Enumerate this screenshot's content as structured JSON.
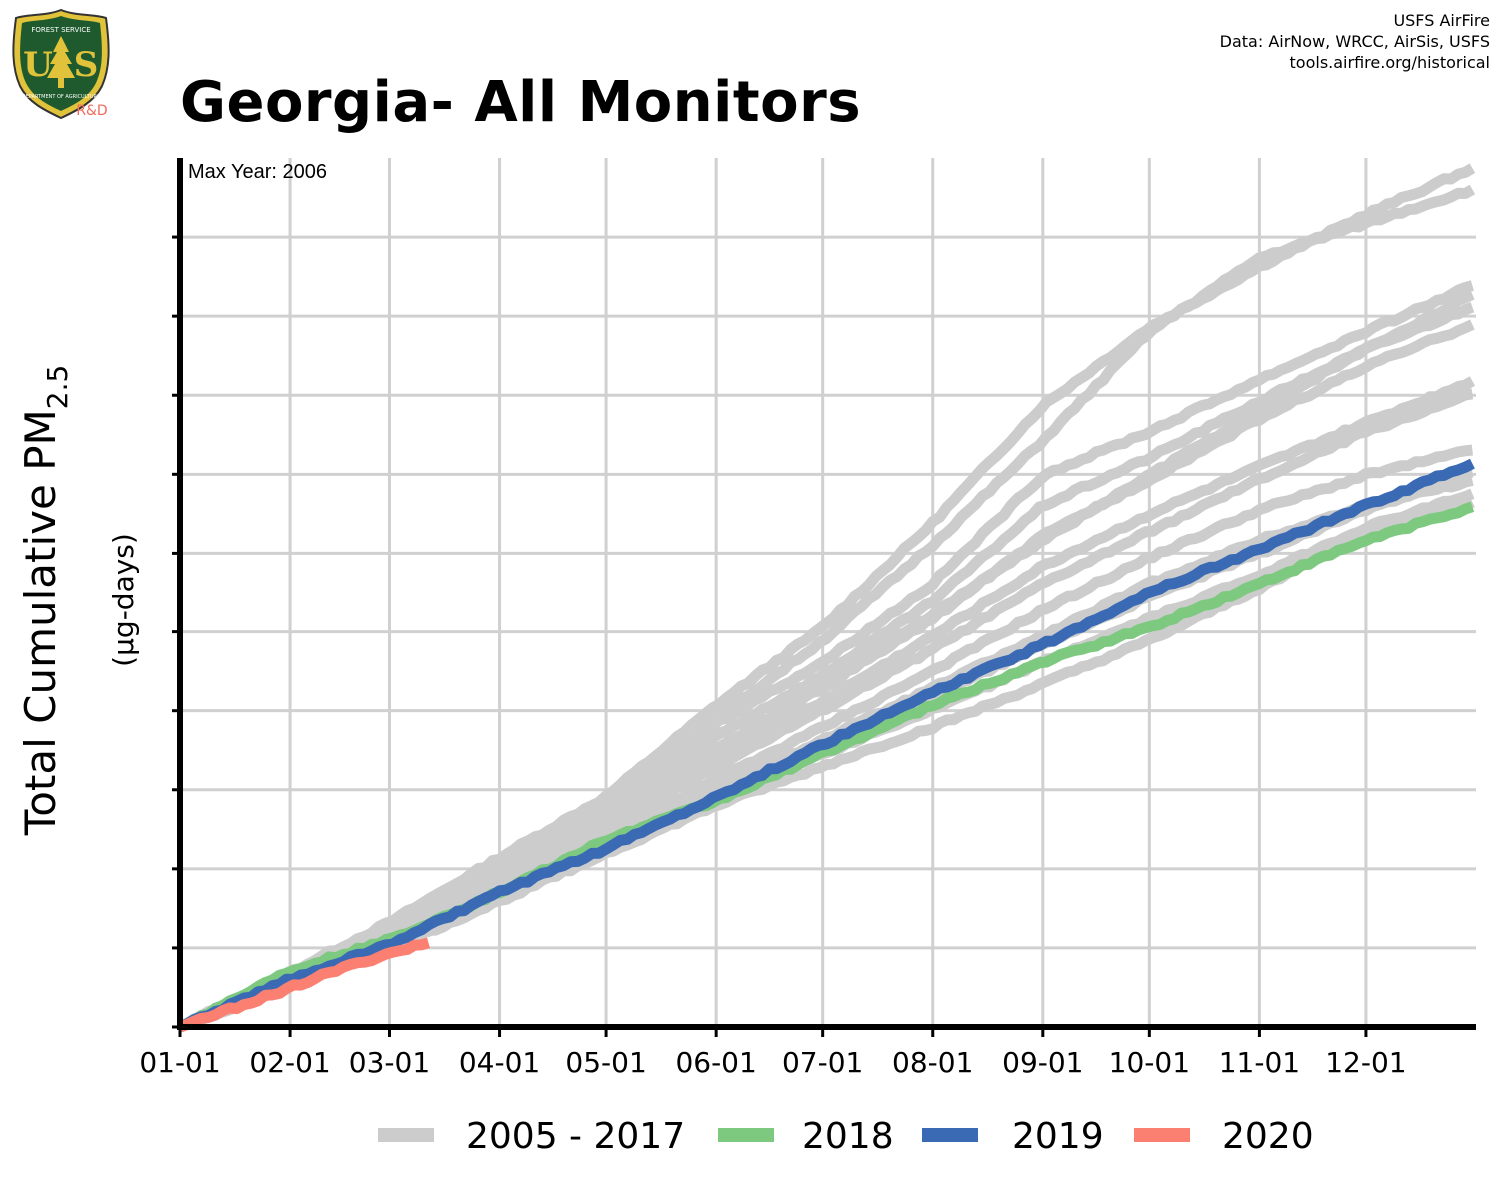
{
  "header": {
    "title": "Georgia- All Monitors",
    "credits": [
      "USFS AirFire",
      "Data: AirNow, WRCC, AirSis, USFS",
      "tools.airfire.org/historical"
    ]
  },
  "logo": {
    "text_top": "FOREST SERVICE",
    "text_us": "U",
    "text_s": "S",
    "text_bottom": "DEPARTMENT OF AGRICULTURE",
    "text_rd": "R&D",
    "colors": {
      "shield_green": "#1f5a2e",
      "shield_gold": "#e0c33a",
      "rd": "#f26b5b"
    }
  },
  "annotation": {
    "max_year": "Max Year: 2006"
  },
  "axes": {
    "ylabel_main": "Total Cumulative PM",
    "ylabel_sub": "2.5",
    "ylabel_units": "(µg-days)"
  },
  "legend": [
    {
      "label": "2005 - 2017",
      "color": "#cccccc"
    },
    {
      "label": "2018",
      "color": "#7dc97f"
    },
    {
      "label": "2019",
      "color": "#3a6ab4"
    },
    {
      "label": "2020",
      "color": "#fb8072"
    }
  ],
  "chart_data": {
    "type": "line",
    "title": "Georgia- All Monitors",
    "xlabel": "",
    "ylabel": "Total Cumulative PM2.5 (µg-days)",
    "x_tick_labels": [
      "01-01",
      "02-01",
      "03-01",
      "04-01",
      "05-01",
      "06-01",
      "07-01",
      "08-01",
      "09-01",
      "10-01",
      "11-01",
      "12-01"
    ],
    "x_tick_days": [
      1,
      32,
      60,
      91,
      121,
      152,
      182,
      213,
      244,
      274,
      305,
      335
    ],
    "xlim": [
      1,
      366
    ],
    "ylim": [
      0,
      1
    ],
    "y_tick_values": [
      0,
      0.091,
      0.182,
      0.273,
      0.364,
      0.455,
      0.545,
      0.636,
      0.727,
      0.818,
      0.909
    ],
    "y_tick_labels_shown": false,
    "grid": true,
    "legend_position": "bottom",
    "series": [
      {
        "name": "2005 - 2017",
        "color": "#cccccc",
        "points": [
          [
            1,
            0
          ],
          [
            60,
            0.12
          ],
          [
            91,
            0.195
          ],
          [
            121,
            0.265
          ],
          [
            152,
            0.37
          ],
          [
            182,
            0.46
          ],
          [
            213,
            0.58
          ],
          [
            244,
            0.715
          ],
          [
            274,
            0.805
          ],
          [
            305,
            0.875
          ],
          [
            335,
            0.935
          ],
          [
            366,
            0.99
          ]
        ]
      },
      {
        "name": "2005 - 2017",
        "color": "#cccccc",
        "points": [
          [
            1,
            0
          ],
          [
            60,
            0.115
          ],
          [
            91,
            0.19
          ],
          [
            121,
            0.26
          ],
          [
            152,
            0.355
          ],
          [
            182,
            0.445
          ],
          [
            213,
            0.555
          ],
          [
            244,
            0.675
          ],
          [
            274,
            0.8
          ],
          [
            305,
            0.885
          ],
          [
            335,
            0.925
          ],
          [
            366,
            0.965
          ]
        ]
      },
      {
        "name": "2005 - 2017",
        "color": "#cccccc",
        "points": [
          [
            1,
            0
          ],
          [
            60,
            0.11
          ],
          [
            91,
            0.185
          ],
          [
            121,
            0.255
          ],
          [
            152,
            0.35
          ],
          [
            182,
            0.42
          ],
          [
            213,
            0.51
          ],
          [
            244,
            0.635
          ],
          [
            274,
            0.685
          ],
          [
            305,
            0.745
          ],
          [
            335,
            0.8
          ],
          [
            366,
            0.855
          ]
        ]
      },
      {
        "name": "2005 - 2017",
        "color": "#cccccc",
        "points": [
          [
            1,
            0
          ],
          [
            60,
            0.11
          ],
          [
            91,
            0.18
          ],
          [
            121,
            0.245
          ],
          [
            152,
            0.335
          ],
          [
            182,
            0.405
          ],
          [
            213,
            0.49
          ],
          [
            244,
            0.6
          ],
          [
            274,
            0.655
          ],
          [
            305,
            0.72
          ],
          [
            335,
            0.78
          ],
          [
            366,
            0.83
          ]
        ]
      },
      {
        "name": "2005 - 2017",
        "color": "#cccccc",
        "points": [
          [
            1,
            0
          ],
          [
            60,
            0.105
          ],
          [
            91,
            0.175
          ],
          [
            121,
            0.24
          ],
          [
            152,
            0.32
          ],
          [
            182,
            0.39
          ],
          [
            213,
            0.47
          ],
          [
            244,
            0.565
          ],
          [
            274,
            0.63
          ],
          [
            305,
            0.7
          ],
          [
            335,
            0.76
          ],
          [
            366,
            0.81
          ]
        ]
      },
      {
        "name": "2005 - 2017",
        "color": "#cccccc",
        "points": [
          [
            1,
            0
          ],
          [
            60,
            0.105
          ],
          [
            91,
            0.17
          ],
          [
            121,
            0.235
          ],
          [
            152,
            0.31
          ],
          [
            182,
            0.375
          ],
          [
            213,
            0.45
          ],
          [
            244,
            0.53
          ],
          [
            274,
            0.59
          ],
          [
            305,
            0.645
          ],
          [
            335,
            0.695
          ],
          [
            366,
            0.745
          ]
        ]
      },
      {
        "name": "2005 - 2017",
        "color": "#cccccc",
        "points": [
          [
            1,
            0
          ],
          [
            60,
            0.1
          ],
          [
            91,
            0.165
          ],
          [
            121,
            0.23
          ],
          [
            152,
            0.3
          ],
          [
            182,
            0.365
          ],
          [
            213,
            0.435
          ],
          [
            244,
            0.51
          ],
          [
            274,
            0.57
          ],
          [
            305,
            0.63
          ],
          [
            335,
            0.685
          ],
          [
            366,
            0.73
          ]
        ]
      },
      {
        "name": "2005 - 2017",
        "color": "#cccccc",
        "points": [
          [
            1,
            0
          ],
          [
            60,
            0.1
          ],
          [
            91,
            0.16
          ],
          [
            121,
            0.22
          ],
          [
            152,
            0.285
          ],
          [
            182,
            0.345
          ],
          [
            213,
            0.41
          ],
          [
            244,
            0.48
          ],
          [
            274,
            0.54
          ],
          [
            305,
            0.595
          ],
          [
            335,
            0.635
          ],
          [
            366,
            0.665
          ]
        ]
      },
      {
        "name": "2005 - 2017",
        "color": "#cccccc",
        "points": [
          [
            1,
            0
          ],
          [
            60,
            0.095
          ],
          [
            91,
            0.155
          ],
          [
            121,
            0.215
          ],
          [
            152,
            0.275
          ],
          [
            182,
            0.33
          ],
          [
            213,
            0.39
          ],
          [
            244,
            0.45
          ],
          [
            274,
            0.51
          ],
          [
            305,
            0.56
          ],
          [
            335,
            0.6
          ],
          [
            366,
            0.63
          ]
        ]
      },
      {
        "name": "2005 - 2017",
        "color": "#cccccc",
        "points": [
          [
            1,
            0
          ],
          [
            60,
            0.09
          ],
          [
            91,
            0.15
          ],
          [
            121,
            0.205
          ],
          [
            152,
            0.265
          ],
          [
            182,
            0.315
          ],
          [
            213,
            0.365
          ],
          [
            244,
            0.42
          ],
          [
            274,
            0.47
          ],
          [
            305,
            0.52
          ],
          [
            335,
            0.575
          ],
          [
            366,
            0.615
          ]
        ]
      },
      {
        "name": "2005 - 2017",
        "color": "#cccccc",
        "points": [
          [
            1,
            0
          ],
          [
            60,
            0.09
          ],
          [
            91,
            0.145
          ],
          [
            121,
            0.2
          ],
          [
            152,
            0.255
          ],
          [
            182,
            0.3
          ],
          [
            213,
            0.345
          ],
          [
            244,
            0.395
          ],
          [
            274,
            0.445
          ],
          [
            305,
            0.505
          ],
          [
            335,
            0.57
          ],
          [
            366,
            0.605
          ]
        ]
      },
      {
        "name": "2005 - 2017",
        "color": "#cccccc",
        "points": [
          [
            1,
            0
          ],
          [
            60,
            0.095
          ],
          [
            91,
            0.15
          ],
          [
            121,
            0.21
          ],
          [
            152,
            0.27
          ],
          [
            182,
            0.325
          ],
          [
            213,
            0.38
          ],
          [
            244,
            0.44
          ],
          [
            274,
            0.495
          ],
          [
            305,
            0.545
          ],
          [
            335,
            0.595
          ],
          [
            366,
            0.64
          ]
        ]
      },
      {
        "name": "2005 - 2017",
        "color": "#cccccc",
        "points": [
          [
            1,
            0
          ],
          [
            60,
            0.1
          ],
          [
            91,
            0.17
          ],
          [
            121,
            0.235
          ],
          [
            152,
            0.315
          ],
          [
            182,
            0.395
          ],
          [
            213,
            0.475
          ],
          [
            244,
            0.56
          ],
          [
            274,
            0.635
          ],
          [
            305,
            0.71
          ],
          [
            335,
            0.78
          ],
          [
            366,
            0.845
          ]
        ]
      },
      {
        "name": "2018",
        "color": "#7dc97f",
        "points": [
          [
            1,
            0
          ],
          [
            32,
            0.065
          ],
          [
            60,
            0.1
          ],
          [
            91,
            0.155
          ],
          [
            121,
            0.215
          ],
          [
            152,
            0.26
          ],
          [
            182,
            0.315
          ],
          [
            213,
            0.37
          ],
          [
            244,
            0.42
          ],
          [
            274,
            0.46
          ],
          [
            305,
            0.51
          ],
          [
            335,
            0.56
          ],
          [
            366,
            0.6
          ]
        ]
      },
      {
        "name": "2019",
        "color": "#3a6ab4",
        "points": [
          [
            1,
            0
          ],
          [
            32,
            0.055
          ],
          [
            60,
            0.095
          ],
          [
            91,
            0.155
          ],
          [
            121,
            0.205
          ],
          [
            152,
            0.265
          ],
          [
            182,
            0.325
          ],
          [
            213,
            0.385
          ],
          [
            244,
            0.44
          ],
          [
            274,
            0.5
          ],
          [
            305,
            0.55
          ],
          [
            335,
            0.6
          ],
          [
            366,
            0.65
          ]
        ]
      },
      {
        "name": "2020",
        "color": "#fb8072",
        "points": [
          [
            1,
            0
          ],
          [
            15,
            0.02
          ],
          [
            32,
            0.045
          ],
          [
            45,
            0.065
          ],
          [
            60,
            0.085
          ],
          [
            72,
            0.098
          ]
        ]
      }
    ]
  }
}
